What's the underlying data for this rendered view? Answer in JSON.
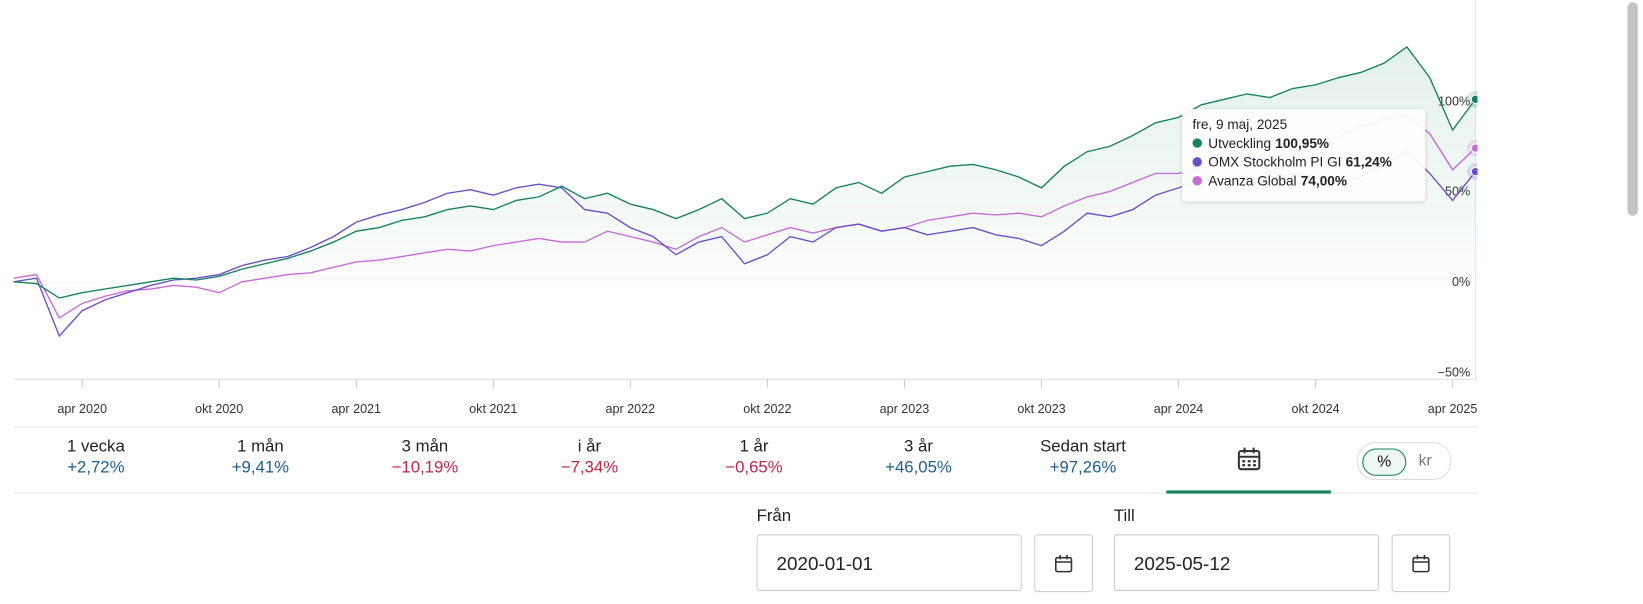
{
  "chart_data": {
    "type": "line",
    "x": [
      "2020-01",
      "2020-02",
      "2020-03",
      "2020-04",
      "2020-05",
      "2020-06",
      "2020-07",
      "2020-08",
      "2020-09",
      "2020-10",
      "2020-11",
      "2020-12",
      "2021-01",
      "2021-02",
      "2021-03",
      "2021-04",
      "2021-05",
      "2021-06",
      "2021-07",
      "2021-08",
      "2021-09",
      "2021-10",
      "2021-11",
      "2021-12",
      "2022-01",
      "2022-02",
      "2022-03",
      "2022-04",
      "2022-05",
      "2022-06",
      "2022-07",
      "2022-08",
      "2022-09",
      "2022-10",
      "2022-11",
      "2022-12",
      "2023-01",
      "2023-02",
      "2023-03",
      "2023-04",
      "2023-05",
      "2023-06",
      "2023-07",
      "2023-08",
      "2023-09",
      "2023-10",
      "2023-11",
      "2023-12",
      "2024-01",
      "2024-02",
      "2024-03",
      "2024-04",
      "2024-05",
      "2024-06",
      "2024-07",
      "2024-08",
      "2024-09",
      "2024-10",
      "2024-11",
      "2024-12",
      "2025-01",
      "2025-02",
      "2025-03",
      "2025-04",
      "2025-05"
    ],
    "series": [
      {
        "name": "Utveckling",
        "color": "#17825c",
        "values": [
          0,
          -1,
          -9,
          -6,
          -4,
          -2,
          0,
          2,
          1,
          3,
          7,
          10,
          13,
          17,
          22,
          28,
          30,
          34,
          36,
          40,
          42,
          40,
          45,
          47,
          53,
          46,
          49,
          43,
          40,
          35,
          40,
          46,
          35,
          38,
          46,
          43,
          52,
          55,
          49,
          58,
          61,
          64,
          65,
          62,
          58,
          52,
          64,
          72,
          75,
          81,
          88,
          91,
          98,
          101,
          104,
          102,
          107,
          109,
          113,
          116,
          121,
          130,
          113,
          84,
          101
        ]
      },
      {
        "name": "OMX Stockholm PI GI",
        "color": "#6a4fc8",
        "values": [
          0,
          2,
          -30,
          -16,
          -10,
          -6,
          -2,
          1,
          2,
          4,
          9,
          12,
          14,
          19,
          25,
          33,
          37,
          40,
          44,
          49,
          51,
          48,
          52,
          54,
          52,
          40,
          38,
          30,
          25,
          15,
          22,
          25,
          10,
          15,
          25,
          22,
          30,
          32,
          28,
          30,
          26,
          28,
          30,
          26,
          24,
          20,
          28,
          38,
          36,
          40,
          48,
          52,
          56,
          55,
          58,
          56,
          60,
          58,
          55,
          58,
          65,
          72,
          60,
          45,
          61
        ]
      },
      {
        "name": "Avanza Global",
        "color": "#c86ad8",
        "values": [
          2,
          4,
          -20,
          -12,
          -8,
          -5,
          -4,
          -2,
          -3,
          -6,
          0,
          2,
          4,
          5,
          8,
          11,
          12,
          14,
          16,
          18,
          17,
          20,
          22,
          24,
          22,
          22,
          28,
          25,
          22,
          18,
          25,
          30,
          22,
          26,
          30,
          27,
          30,
          32,
          28,
          30,
          34,
          36,
          38,
          37,
          38,
          36,
          42,
          47,
          50,
          55,
          60,
          60,
          63,
          67,
          68,
          68,
          72,
          74,
          80,
          86,
          90,
          92,
          82,
          62,
          74
        ]
      }
    ],
    "xlim": [
      "2020-01",
      "2025-05"
    ],
    "xticks": [
      {
        "value": "2020-04",
        "label": "apr 2020"
      },
      {
        "value": "2020-10",
        "label": "okt 2020"
      },
      {
        "value": "2021-04",
        "label": "apr 2021"
      },
      {
        "value": "2021-10",
        "label": "okt 2021"
      },
      {
        "value": "2022-04",
        "label": "apr 2022"
      },
      {
        "value": "2022-10",
        "label": "okt 2022"
      },
      {
        "value": "2023-04",
        "label": "apr 2023"
      },
      {
        "value": "2023-10",
        "label": "okt 2023"
      },
      {
        "value": "2024-04",
        "label": "apr 2024"
      },
      {
        "value": "2024-10",
        "label": "okt 2024"
      },
      {
        "value": "2025-04",
        "label": "apr 2025"
      }
    ],
    "ylim": [
      -54,
      156
    ],
    "yticks": [
      {
        "value": -50,
        "label": "−50%"
      },
      {
        "value": 0,
        "label": "0%"
      },
      {
        "value": 50,
        "label": "50%"
      },
      {
        "value": 100,
        "label": "100%"
      }
    ],
    "grid": false,
    "tooltip": {
      "date": "fre, 9 maj, 2025",
      "value_labels": [
        "100,95%",
        "61,24%",
        "74,00%"
      ]
    }
  },
  "periods": [
    {
      "label": "1 vecka",
      "change": "+2,72%",
      "color": "#1d5f8f"
    },
    {
      "label": "1 mån",
      "change": "+9,41%",
      "color": "#1d5f8f"
    },
    {
      "label": "3 mån",
      "change": "−10,19%",
      "color": "#c0284a"
    },
    {
      "label": "i år",
      "change": "−7,34%",
      "color": "#c0284a"
    },
    {
      "label": "1 år",
      "change": "−0,65%",
      "color": "#c0284a"
    },
    {
      "label": "3 år",
      "change": "+46,05%",
      "color": "#1d5f8f"
    },
    {
      "label": "Sedan start",
      "change": "+97,26%",
      "color": "#1d5f8f"
    }
  ],
  "unit_toggle": [
    "%",
    "kr"
  ],
  "date_range": {
    "from_label": "Från",
    "from": "2020-01-01",
    "to_label": "Till",
    "to": "2025-05-12"
  }
}
